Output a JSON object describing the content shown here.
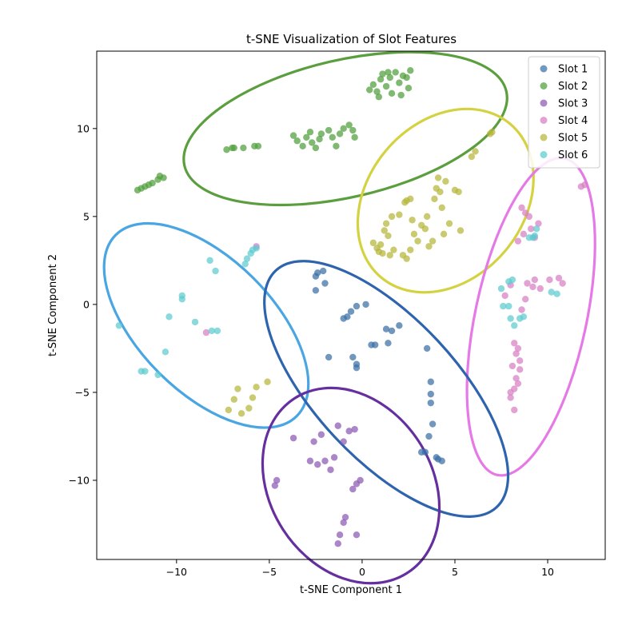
{
  "chart_data": {
    "type": "scatter",
    "title": "t-SNE Visualization of Slot Features",
    "xlabel": "t-SNE Component 1",
    "ylabel": "t-SNE Component 2",
    "xlim": [
      -14.3,
      13.1
    ],
    "ylim": [
      -14.5,
      14.4
    ],
    "xticks": [
      -10,
      -5,
      0,
      5,
      10
    ],
    "yticks": [
      -10,
      -5,
      0,
      5,
      10
    ],
    "xtick_labels": [
      "−10",
      "−5",
      "0",
      "5",
      "10"
    ],
    "ytick_labels": [
      "−10",
      "−5",
      "0",
      "5",
      "10"
    ],
    "grid": false,
    "legend_position": "top-right",
    "series": [
      {
        "name": "Slot 1",
        "color": "#3a6fa6",
        "points": [
          [
            -2.5,
            1.6
          ],
          [
            -2.4,
            1.8
          ],
          [
            -2.1,
            1.9
          ],
          [
            -2.5,
            0.8
          ],
          [
            -2.0,
            1.2
          ],
          [
            -1.0,
            -0.8
          ],
          [
            -0.8,
            -0.7
          ],
          [
            -0.6,
            -0.4
          ],
          [
            -0.3,
            -0.1
          ],
          [
            0.2,
            0.0
          ],
          [
            -1.8,
            -3.0
          ],
          [
            -0.5,
            -3.0
          ],
          [
            -0.3,
            -3.4
          ],
          [
            -0.3,
            -3.6
          ],
          [
            0.5,
            -2.3
          ],
          [
            0.7,
            -2.3
          ],
          [
            1.3,
            -1.4
          ],
          [
            1.6,
            -1.5
          ],
          [
            2.0,
            -1.2
          ],
          [
            1.4,
            -2.2
          ],
          [
            3.5,
            -2.5
          ],
          [
            3.7,
            -4.4
          ],
          [
            3.7,
            -5.1
          ],
          [
            3.7,
            -5.6
          ],
          [
            3.8,
            -6.8
          ],
          [
            3.6,
            -7.5
          ],
          [
            3.2,
            -8.4
          ],
          [
            3.4,
            -8.4
          ],
          [
            4.0,
            -8.7
          ],
          [
            4.1,
            -8.8
          ],
          [
            4.3,
            -8.9
          ]
        ]
      },
      {
        "name": "Slot 2",
        "color": "#4f9e3a",
        "points": [
          [
            -12.1,
            6.5
          ],
          [
            -11.9,
            6.6
          ],
          [
            -11.7,
            6.7
          ],
          [
            -11.5,
            6.8
          ],
          [
            -11.3,
            6.9
          ],
          [
            -11.0,
            7.1
          ],
          [
            -10.9,
            7.3
          ],
          [
            -10.7,
            7.2
          ],
          [
            -7.3,
            8.8
          ],
          [
            -7.0,
            8.9
          ],
          [
            -6.9,
            8.9
          ],
          [
            -6.4,
            8.9
          ],
          [
            -5.8,
            9.0
          ],
          [
            -5.6,
            9.0
          ],
          [
            -3.7,
            9.6
          ],
          [
            -3.5,
            9.3
          ],
          [
            -3.2,
            9.0
          ],
          [
            -3.0,
            9.5
          ],
          [
            -2.8,
            9.8
          ],
          [
            -2.7,
            9.2
          ],
          [
            -2.5,
            8.9
          ],
          [
            -2.3,
            9.4
          ],
          [
            -2.2,
            9.7
          ],
          [
            -1.8,
            9.9
          ],
          [
            -1.6,
            9.5
          ],
          [
            -1.4,
            9.0
          ],
          [
            -1.2,
            9.7
          ],
          [
            -1.0,
            10.0
          ],
          [
            -0.7,
            10.2
          ],
          [
            -0.5,
            9.9
          ],
          [
            -0.4,
            9.5
          ],
          [
            0.4,
            12.2
          ],
          [
            0.6,
            12.5
          ],
          [
            0.8,
            12.1
          ],
          [
            1.0,
            12.8
          ],
          [
            1.1,
            13.1
          ],
          [
            1.3,
            12.4
          ],
          [
            1.5,
            12.9
          ],
          [
            1.6,
            12.0
          ],
          [
            1.8,
            13.2
          ],
          [
            2.0,
            12.6
          ],
          [
            2.1,
            11.9
          ],
          [
            2.2,
            13.0
          ],
          [
            2.4,
            12.9
          ],
          [
            2.6,
            13.3
          ],
          [
            2.5,
            12.3
          ],
          [
            0.9,
            11.8
          ],
          [
            1.4,
            13.2
          ]
        ]
      },
      {
        "name": "Slot 3",
        "color": "#8a58b4",
        "points": [
          [
            -3.7,
            -7.6
          ],
          [
            -4.6,
            -10.0
          ],
          [
            -4.7,
            -10.3
          ],
          [
            -2.8,
            -8.9
          ],
          [
            -2.6,
            -7.8
          ],
          [
            -2.4,
            -9.1
          ],
          [
            -2.2,
            -7.4
          ],
          [
            -2.0,
            -8.9
          ],
          [
            -1.7,
            -9.4
          ],
          [
            -1.5,
            -8.7
          ],
          [
            -1.3,
            -6.9
          ],
          [
            -1.0,
            -7.8
          ],
          [
            -0.9,
            -12.1
          ],
          [
            -1.0,
            -12.4
          ],
          [
            -1.2,
            -13.1
          ],
          [
            -1.3,
            -13.6
          ],
          [
            -0.7,
            -7.2
          ],
          [
            -0.4,
            -7.1
          ],
          [
            -0.5,
            -10.5
          ],
          [
            -0.3,
            -10.2
          ],
          [
            -0.1,
            -10.0
          ],
          [
            -0.3,
            -13.1
          ]
        ]
      },
      {
        "name": "Slot 4",
        "color": "#d77fc4",
        "points": [
          [
            -5.7,
            3.3
          ],
          [
            -8.4,
            -1.6
          ],
          [
            8.2,
            -6.0
          ],
          [
            8.0,
            -5.3
          ],
          [
            8.0,
            -5.0
          ],
          [
            8.2,
            -4.8
          ],
          [
            8.4,
            -4.5
          ],
          [
            8.3,
            -4.2
          ],
          [
            8.1,
            -3.5
          ],
          [
            8.5,
            -3.7
          ],
          [
            8.5,
            -3.2
          ],
          [
            8.3,
            -2.8
          ],
          [
            8.4,
            -2.5
          ],
          [
            8.2,
            -2.2
          ],
          [
            7.7,
            0.5
          ],
          [
            8.0,
            1.1
          ],
          [
            8.9,
            1.2
          ],
          [
            9.2,
            1.0
          ],
          [
            9.3,
            1.4
          ],
          [
            9.6,
            0.9
          ],
          [
            10.1,
            1.4
          ],
          [
            10.6,
            1.5
          ],
          [
            10.8,
            1.2
          ],
          [
            8.8,
            0.3
          ],
          [
            8.6,
            -0.3
          ],
          [
            8.4,
            3.6
          ],
          [
            8.7,
            4.0
          ],
          [
            9.1,
            4.3
          ],
          [
            9.3,
            3.8
          ],
          [
            9.5,
            4.6
          ],
          [
            9.0,
            5.0
          ],
          [
            8.8,
            5.2
          ],
          [
            8.6,
            5.5
          ],
          [
            11.8,
            6.7
          ],
          [
            12.0,
            6.8
          ]
        ]
      },
      {
        "name": "Slot 5",
        "color": "#b5b63a",
        "points": [
          [
            0.6,
            3.5
          ],
          [
            0.8,
            3.2
          ],
          [
            0.9,
            3.0
          ],
          [
            1.0,
            3.4
          ],
          [
            1.1,
            2.9
          ],
          [
            1.2,
            4.2
          ],
          [
            1.3,
            4.6
          ],
          [
            1.4,
            3.9
          ],
          [
            1.5,
            2.8
          ],
          [
            1.6,
            5.0
          ],
          [
            1.7,
            3.1
          ],
          [
            2.0,
            5.1
          ],
          [
            2.3,
            5.8
          ],
          [
            2.4,
            5.9
          ],
          [
            2.6,
            6.0
          ],
          [
            2.2,
            2.8
          ],
          [
            2.4,
            2.6
          ],
          [
            2.6,
            3.1
          ],
          [
            2.7,
            4.8
          ],
          [
            2.8,
            4.0
          ],
          [
            3.0,
            3.6
          ],
          [
            3.2,
            4.5
          ],
          [
            3.4,
            4.3
          ],
          [
            3.5,
            5.0
          ],
          [
            3.6,
            3.3
          ],
          [
            3.8,
            3.6
          ],
          [
            3.9,
            6.0
          ],
          [
            4.0,
            6.6
          ],
          [
            4.1,
            7.2
          ],
          [
            4.2,
            6.4
          ],
          [
            4.3,
            5.5
          ],
          [
            4.4,
            4.0
          ],
          [
            4.5,
            7.0
          ],
          [
            4.7,
            4.6
          ],
          [
            5.0,
            6.5
          ],
          [
            5.2,
            6.4
          ],
          [
            5.3,
            4.2
          ],
          [
            5.9,
            8.4
          ],
          [
            6.1,
            8.7
          ],
          [
            6.9,
            9.7
          ],
          [
            7.0,
            9.8
          ],
          [
            -7.2,
            -6.0
          ],
          [
            -6.9,
            -5.4
          ],
          [
            -6.7,
            -4.8
          ],
          [
            -6.5,
            -6.2
          ],
          [
            -6.1,
            -5.9
          ],
          [
            -5.9,
            -5.3
          ],
          [
            -5.7,
            -4.7
          ],
          [
            -5.1,
            -4.4
          ]
        ]
      },
      {
        "name": "Slot 6",
        "color": "#5ccbd0",
        "points": [
          [
            -13.1,
            -1.2
          ],
          [
            -11.9,
            -3.8
          ],
          [
            -11.7,
            -3.8
          ],
          [
            -11.0,
            -4.0
          ],
          [
            -10.6,
            -2.7
          ],
          [
            -10.4,
            -0.7
          ],
          [
            -9.7,
            0.3
          ],
          [
            -9.7,
            0.5
          ],
          [
            -9.0,
            -1.0
          ],
          [
            -8.1,
            -1.5
          ],
          [
            -7.8,
            -1.5
          ],
          [
            -8.2,
            2.5
          ],
          [
            -7.9,
            1.9
          ],
          [
            -6.3,
            2.3
          ],
          [
            -6.2,
            2.6
          ],
          [
            -6.0,
            2.9
          ],
          [
            -5.9,
            3.1
          ],
          [
            -5.7,
            3.2
          ],
          [
            7.5,
            0.9
          ],
          [
            7.6,
            -0.1
          ],
          [
            7.9,
            -0.1
          ],
          [
            7.9,
            1.3
          ],
          [
            8.1,
            1.4
          ],
          [
            8.0,
            -0.8
          ],
          [
            8.2,
            -1.2
          ],
          [
            8.5,
            -0.8
          ],
          [
            8.7,
            -0.7
          ],
          [
            9.0,
            3.8
          ],
          [
            9.2,
            3.8
          ],
          [
            9.3,
            3.9
          ],
          [
            9.4,
            4.3
          ],
          [
            10.2,
            0.7
          ],
          [
            10.5,
            0.6
          ]
        ]
      }
    ],
    "annotations": [
      {
        "shape": "ellipse",
        "color": "#5b9e3e",
        "cx": -0.9,
        "cy": 10.0,
        "rx": 8.9,
        "ry": 3.9,
        "rotate": -13
      },
      {
        "shape": "ellipse",
        "color": "#d4d241",
        "cx": 4.5,
        "cy": 5.9,
        "rx": 4.2,
        "ry": 5.7,
        "rotate": 40
      },
      {
        "shape": "ellipse",
        "color": "#e57ae6",
        "cx": 9.1,
        "cy": -0.7,
        "rx": 3.0,
        "ry": 9.2,
        "rotate": 12
      },
      {
        "shape": "ellipse",
        "color": "#4aa6e3",
        "cx": -8.4,
        "cy": -1.2,
        "rx": 6.9,
        "ry": 3.8,
        "rotate": 45
      },
      {
        "shape": "ellipse",
        "color": "#2e64ad",
        "cx": 1.3,
        "cy": -4.8,
        "rx": 3.8,
        "ry": 9.2,
        "rotate": -43
      },
      {
        "shape": "ellipse",
        "color": "#662fa0",
        "cx": -0.6,
        "cy": -10.3,
        "rx": 5.6,
        "ry": 4.6,
        "rotate": 57
      }
    ]
  }
}
